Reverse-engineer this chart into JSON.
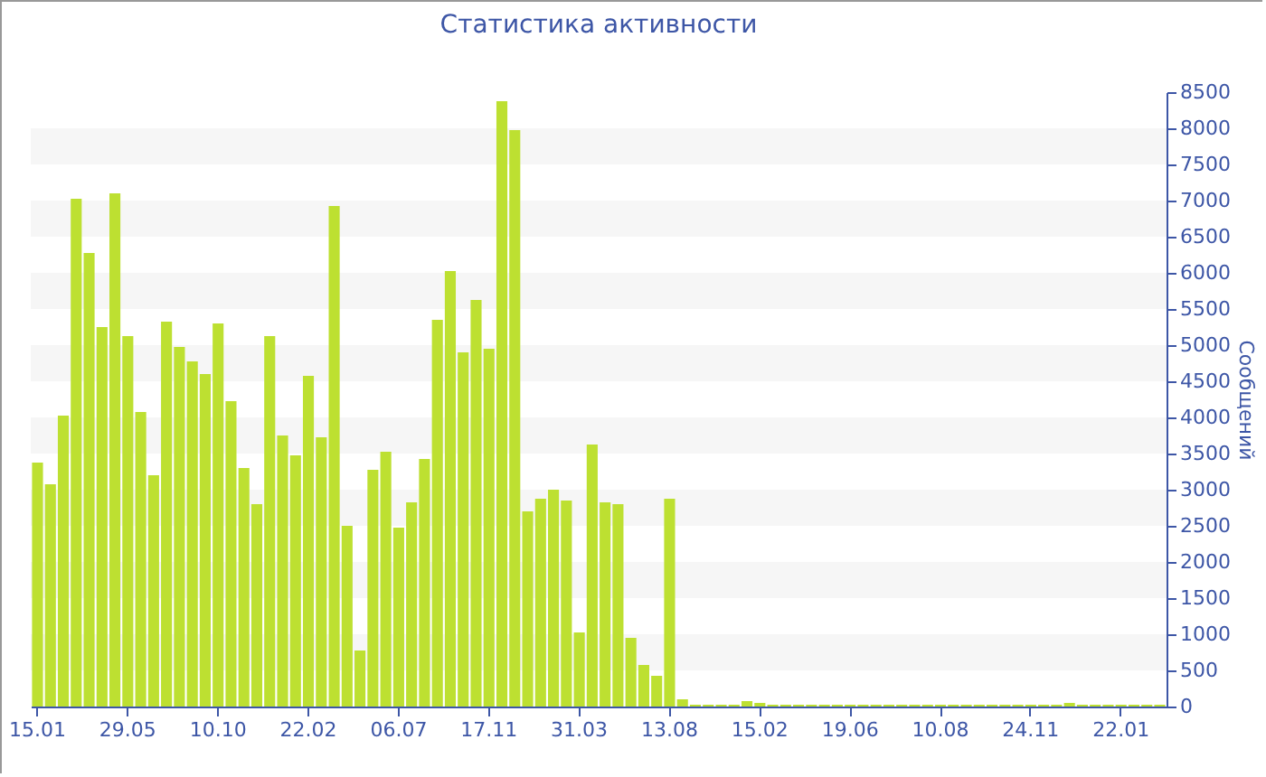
{
  "chart_data": {
    "type": "bar",
    "title": "Статистика активности",
    "ylabel": "Сообщений",
    "categories": [
      "15.01",
      null,
      null,
      null,
      null,
      null,
      null,
      "29.05",
      null,
      null,
      null,
      null,
      null,
      null,
      "10.10",
      null,
      null,
      null,
      null,
      null,
      null,
      "22.02",
      null,
      null,
      null,
      null,
      null,
      null,
      "06.07",
      null,
      null,
      null,
      null,
      null,
      null,
      "17.11",
      null,
      null,
      null,
      null,
      null,
      null,
      "31.03",
      null,
      null,
      null,
      null,
      null,
      null,
      "13.08",
      null,
      null,
      null,
      null,
      null,
      null,
      "15.02",
      null,
      null,
      null,
      null,
      null,
      null,
      "19.06",
      null,
      null,
      null,
      null,
      null,
      null,
      "10.08",
      null,
      null,
      null,
      null,
      null,
      null,
      "24.11",
      null,
      null,
      null,
      null,
      null,
      null,
      "22.01",
      null,
      null,
      null
    ],
    "values": [
      3375,
      3075,
      4025,
      7025,
      6275,
      5250,
      7100,
      5125,
      4075,
      3200,
      5325,
      4975,
      4775,
      4600,
      5300,
      4225,
      3300,
      2800,
      5125,
      3750,
      3475,
      4575,
      3725,
      6925,
      2500,
      775,
      3275,
      3525,
      2475,
      2825,
      3425,
      5350,
      6025,
      4900,
      5625,
      4950,
      8375,
      7975,
      2700,
      2875,
      3000,
      2850,
      1025,
      3625,
      2825,
      2800,
      950,
      575,
      425,
      2875,
      100,
      25,
      25,
      25,
      25,
      75,
      50,
      25,
      25,
      25,
      25,
      25,
      25,
      25,
      25,
      25,
      25,
      25,
      25,
      25,
      25,
      25,
      25,
      25,
      25,
      25,
      25,
      25,
      25,
      25,
      50,
      25,
      25,
      25,
      25,
      25,
      25,
      25
    ],
    "color": "#bde031",
    "ylim": [
      0,
      8500
    ],
    "yticks": [
      0,
      500,
      1000,
      1500,
      2000,
      2500,
      3000,
      3500,
      4000,
      4500,
      5000,
      5500,
      6000,
      6500,
      7000,
      7500,
      8000,
      8500
    ],
    "bands": [
      {
        "axis": "y",
        "from": 500,
        "to": 1000,
        "color": "#f6f6f6"
      },
      {
        "axis": "y",
        "from": 1500,
        "to": 2000,
        "color": "#f6f6f6"
      },
      {
        "axis": "y",
        "from": 2500,
        "to": 3000,
        "color": "#f6f6f6"
      },
      {
        "axis": "y",
        "from": 3500,
        "to": 4000,
        "color": "#f6f6f6"
      },
      {
        "axis": "y",
        "from": 4500,
        "to": 5000,
        "color": "#f6f6f6"
      },
      {
        "axis": "y",
        "from": 5500,
        "to": 6000,
        "color": "#f6f6f6"
      },
      {
        "axis": "y",
        "from": 6500,
        "to": 7000,
        "color": "#f6f6f6"
      },
      {
        "axis": "y",
        "from": 7500,
        "to": 8000,
        "color": "#f6f6f6"
      }
    ]
  }
}
